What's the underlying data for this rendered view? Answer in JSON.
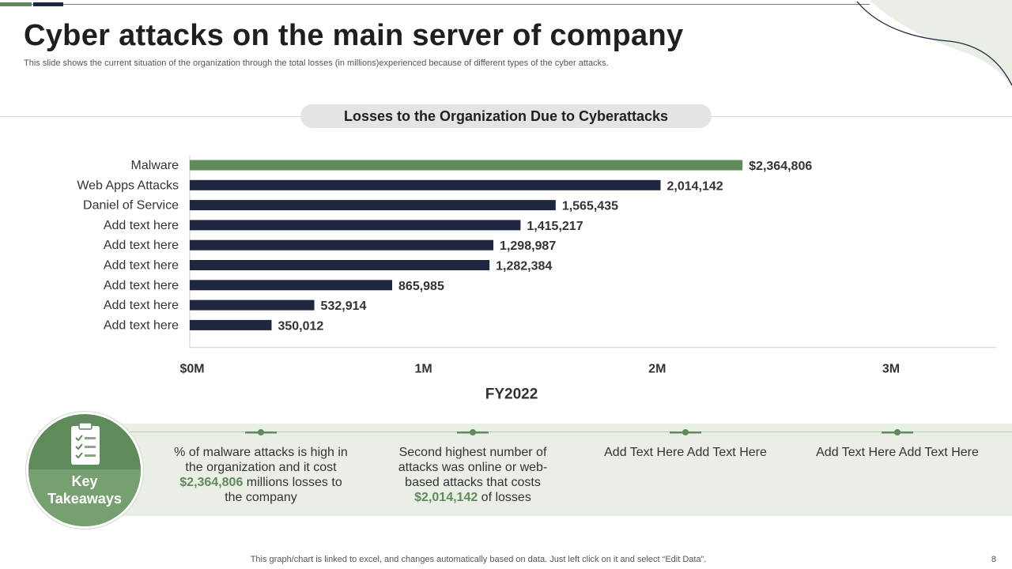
{
  "title": "Cyber attacks on the main server of company",
  "subtitle": "This slide shows the current situation of the organization through the total losses (in millions)experienced because of different types of the cyber attacks.",
  "colors": {
    "accent_green": "#5f8a5a",
    "bar_dark": "#1f2640",
    "band_bg": "#e9efe7"
  },
  "chart_data": {
    "type": "bar",
    "orientation": "horizontal",
    "title": "Losses to the Organization Due to Cyberattacks",
    "xlabel": "FY2022",
    "ylabel": "",
    "xlim": [
      0,
      3450000
    ],
    "xticks": [
      0,
      1000000,
      2000000,
      3000000
    ],
    "xtick_labels": [
      "$0M",
      "1M",
      "2M",
      "3M"
    ],
    "categories": [
      "Malware",
      "Web Apps Attacks",
      "Daniel of Service",
      "Add text here",
      "Add text here",
      "Add text here",
      "Add text here",
      "Add text here",
      "Add text here"
    ],
    "values": [
      2364806,
      2014142,
      1565435,
      1415217,
      1298987,
      1282384,
      865985,
      532914,
      350012
    ],
    "value_labels": [
      "$2,364,806",
      "2,014,142",
      "1,565,435",
      "1,415,217",
      "1,298,987",
      "1,282,384",
      "865,985",
      "532,914",
      "350,012"
    ],
    "bar_colors": [
      "#5f8a5a",
      "#1f2640",
      "#1f2640",
      "#1f2640",
      "#1f2640",
      "#1f2640",
      "#1f2640",
      "#1f2640",
      "#1f2640"
    ],
    "grid": false,
    "legend": "none"
  },
  "takeaways": {
    "label_line1": "Key",
    "label_line2": "Takeaways",
    "icon": "clipboard-checklist-icon",
    "items": [
      {
        "pre": "% of malware attacks is high in the organization and it cost ",
        "highlight": "$2,364,806",
        "post": " millions losses to the company"
      },
      {
        "pre": "Second highest number of attacks was online or web-based attacks that costs ",
        "highlight": "$2,014,142",
        "post": " of losses"
      },
      {
        "pre": "Add Text Here Add Text Here",
        "highlight": "",
        "post": ""
      },
      {
        "pre": "Add Text Here Add Text Here",
        "highlight": "",
        "post": ""
      }
    ]
  },
  "footer_note": "This graph/chart is linked to excel, and changes automatically based on data. Just left click on it and select “Edit Data”.",
  "page_number": "8"
}
